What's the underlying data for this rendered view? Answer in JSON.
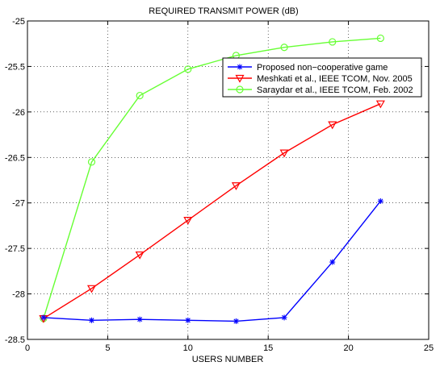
{
  "chart_data": {
    "type": "line",
    "title": "REQUIRED TRANSMIT POWER (dB)",
    "xlabel": "USERS NUMBER",
    "ylabel": "",
    "xlim": [
      0,
      25
    ],
    "ylim": [
      -28.5,
      -25
    ],
    "xticks": [
      0,
      5,
      10,
      15,
      20,
      25
    ],
    "yticks": [
      -25,
      -25.5,
      -26,
      -26.5,
      -27,
      -27.5,
      -28,
      -28.5
    ],
    "xtick_labels": [
      "0",
      "5",
      "10",
      "15",
      "20",
      "25"
    ],
    "ytick_labels": [
      "-25",
      "-25.5",
      "-26",
      "-26.5",
      "-27",
      "-27.5",
      "-28",
      "-28.5"
    ],
    "grid": true,
    "grid_style": "dotted",
    "legend_position": "upper-right",
    "series": [
      {
        "name": "Proposed non−cooperative game",
        "color": "#0000ff",
        "marker": "asterisk",
        "x": [
          1,
          4,
          7,
          10,
          13,
          16,
          19,
          22
        ],
        "y": [
          -28.26,
          -28.29,
          -28.28,
          -28.29,
          -28.3,
          -28.26,
          -27.65,
          -26.98
        ]
      },
      {
        "name": "Meshkati et al., IEEE TCOM, Nov. 2005",
        "color": "#ff0000",
        "marker": "triangle-down",
        "x": [
          1,
          4,
          7,
          10,
          13,
          16,
          19,
          22
        ],
        "y": [
          -28.27,
          -27.94,
          -27.57,
          -27.19,
          -26.81,
          -26.45,
          -26.14,
          -25.91
        ]
      },
      {
        "name": "Saraydar et al., IEEE TCOM, Feb. 2002",
        "color": "#66ff33",
        "marker": "circle",
        "x": [
          1,
          4,
          7,
          10,
          13,
          16,
          19,
          22
        ],
        "y": [
          -28.27,
          -26.55,
          -25.82,
          -25.53,
          -25.38,
          -25.29,
          -25.23,
          -25.19
        ]
      }
    ]
  }
}
